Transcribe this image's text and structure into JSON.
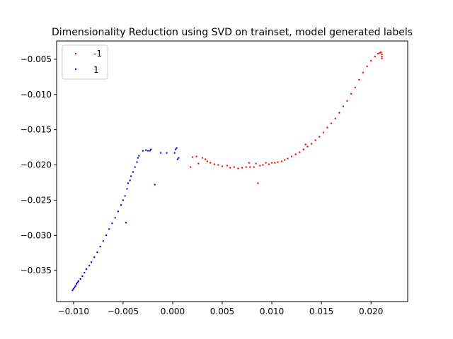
{
  "chart_data": {
    "type": "scatter",
    "title": "Dimensionality Reduction using SVD on trainset, model generated labels",
    "xlabel": "",
    "ylabel": "",
    "xlim": [
      -0.0117,
      0.0237
    ],
    "ylim": [
      -0.0394,
      -0.0024
    ],
    "x_ticks": [
      -0.01,
      -0.005,
      0.0,
      0.005,
      0.01,
      0.015,
      0.02
    ],
    "x_tick_labels": [
      "−0.010",
      "−0.005",
      "0.000",
      "0.005",
      "0.010",
      "0.015",
      "0.020"
    ],
    "y_ticks": [
      -0.035,
      -0.03,
      -0.025,
      -0.02,
      -0.015,
      -0.01,
      -0.005
    ],
    "y_tick_labels": [
      "−0.035",
      "−0.030",
      "−0.025",
      "−0.020",
      "−0.015",
      "−0.010",
      "−0.005"
    ],
    "grid": false,
    "legend_position": "upper-left",
    "series": [
      {
        "name": "-1",
        "color": "#ff0000",
        "points": [
          [
            0.0018,
            -0.0203
          ],
          [
            0.002,
            -0.0189
          ],
          [
            0.0024,
            -0.0188
          ],
          [
            0.0026,
            -0.0198
          ],
          [
            0.003,
            -0.019
          ],
          [
            0.0033,
            -0.0192
          ],
          [
            0.0035,
            -0.0195
          ],
          [
            0.0038,
            -0.0197
          ],
          [
            0.0042,
            -0.0199
          ],
          [
            0.0046,
            -0.02
          ],
          [
            0.005,
            -0.0202
          ],
          [
            0.0055,
            -0.0201
          ],
          [
            0.0058,
            -0.0204
          ],
          [
            0.0062,
            -0.0203
          ],
          [
            0.0066,
            -0.0205
          ],
          [
            0.007,
            -0.0204
          ],
          [
            0.0074,
            -0.0203
          ],
          [
            0.0077,
            -0.0197
          ],
          [
            0.0078,
            -0.0203
          ],
          [
            0.0082,
            -0.0203
          ],
          [
            0.0084,
            -0.0198
          ],
          [
            0.0086,
            -0.0226
          ],
          [
            0.0088,
            -0.0201
          ],
          [
            0.0091,
            -0.02
          ],
          [
            0.0094,
            -0.0197
          ],
          [
            0.0097,
            -0.0199
          ],
          [
            0.01,
            -0.0197
          ],
          [
            0.0103,
            -0.0197
          ],
          [
            0.0106,
            -0.0196
          ],
          [
            0.011,
            -0.0195
          ],
          [
            0.0113,
            -0.0193
          ],
          [
            0.0116,
            -0.0191
          ],
          [
            0.012,
            -0.0188
          ],
          [
            0.0124,
            -0.0185
          ],
          [
            0.0128,
            -0.0182
          ],
          [
            0.0132,
            -0.0178
          ],
          [
            0.0134,
            -0.0171
          ],
          [
            0.0136,
            -0.0174
          ],
          [
            0.014,
            -0.017
          ],
          [
            0.0144,
            -0.0165
          ],
          [
            0.0148,
            -0.016
          ],
          [
            0.0152,
            -0.0154
          ],
          [
            0.0156,
            -0.0147
          ],
          [
            0.016,
            -0.0141
          ],
          [
            0.0164,
            -0.0134
          ],
          [
            0.0168,
            -0.0126
          ],
          [
            0.0172,
            -0.0117
          ],
          [
            0.0176,
            -0.0109
          ],
          [
            0.018,
            -0.0099
          ],
          [
            0.0184,
            -0.009
          ],
          [
            0.0188,
            -0.0079
          ],
          [
            0.0192,
            -0.0069
          ],
          [
            0.0196,
            -0.006
          ],
          [
            0.02,
            -0.0052
          ],
          [
            0.0204,
            -0.0046
          ],
          [
            0.0207,
            -0.0042
          ],
          [
            0.0209,
            -0.0041
          ],
          [
            0.021,
            -0.004
          ],
          [
            0.0211,
            -0.0043
          ],
          [
            0.0211,
            -0.0046
          ],
          [
            0.0211,
            -0.0049
          ]
        ]
      },
      {
        "name": "1",
        "color": "#0000ff",
        "points": [
          [
            -0.0101,
            -0.0378
          ],
          [
            -0.01,
            -0.0376
          ],
          [
            -0.0099,
            -0.0374
          ],
          [
            -0.0098,
            -0.0372
          ],
          [
            -0.0097,
            -0.0369
          ],
          [
            -0.0096,
            -0.0367
          ],
          [
            -0.0095,
            -0.0365
          ],
          [
            -0.0093,
            -0.0362
          ],
          [
            -0.0091,
            -0.0358
          ],
          [
            -0.0089,
            -0.0353
          ],
          [
            -0.0087,
            -0.0348
          ],
          [
            -0.0084,
            -0.0343
          ],
          [
            -0.0082,
            -0.0338
          ],
          [
            -0.0079,
            -0.0331
          ],
          [
            -0.0076,
            -0.0324
          ],
          [
            -0.0073,
            -0.0316
          ],
          [
            -0.007,
            -0.0308
          ],
          [
            -0.0067,
            -0.03
          ],
          [
            -0.0064,
            -0.0291
          ],
          [
            -0.0061,
            -0.0283
          ],
          [
            -0.0058,
            -0.0275
          ],
          [
            -0.0055,
            -0.0266
          ],
          [
            -0.0052,
            -0.0257
          ],
          [
            -0.005,
            -0.025
          ],
          [
            -0.0048,
            -0.0244
          ],
          [
            -0.0046,
            -0.0234
          ],
          [
            -0.0045,
            -0.0226
          ],
          [
            -0.0047,
            -0.0282
          ],
          [
            -0.0043,
            -0.0222
          ],
          [
            -0.0042,
            -0.0216
          ],
          [
            -0.004,
            -0.021
          ],
          [
            -0.0038,
            -0.0203
          ],
          [
            -0.0036,
            -0.0196
          ],
          [
            -0.0035,
            -0.019
          ],
          [
            -0.0034,
            -0.0187
          ],
          [
            -0.003,
            -0.018
          ],
          [
            -0.0027,
            -0.0179
          ],
          [
            -0.0025,
            -0.018
          ],
          [
            -0.0023,
            -0.018
          ],
          [
            -0.0022,
            -0.0178
          ],
          [
            -0.0018,
            -0.0228
          ],
          [
            -0.0012,
            -0.0183
          ],
          [
            -0.0006,
            -0.0183
          ],
          [
            0.0002,
            -0.0183
          ],
          [
            0.0003,
            -0.0178
          ],
          [
            0.0005,
            -0.0192
          ],
          [
            0.0006,
            -0.019
          ],
          [
            0.0004,
            -0.0176
          ]
        ]
      }
    ]
  }
}
